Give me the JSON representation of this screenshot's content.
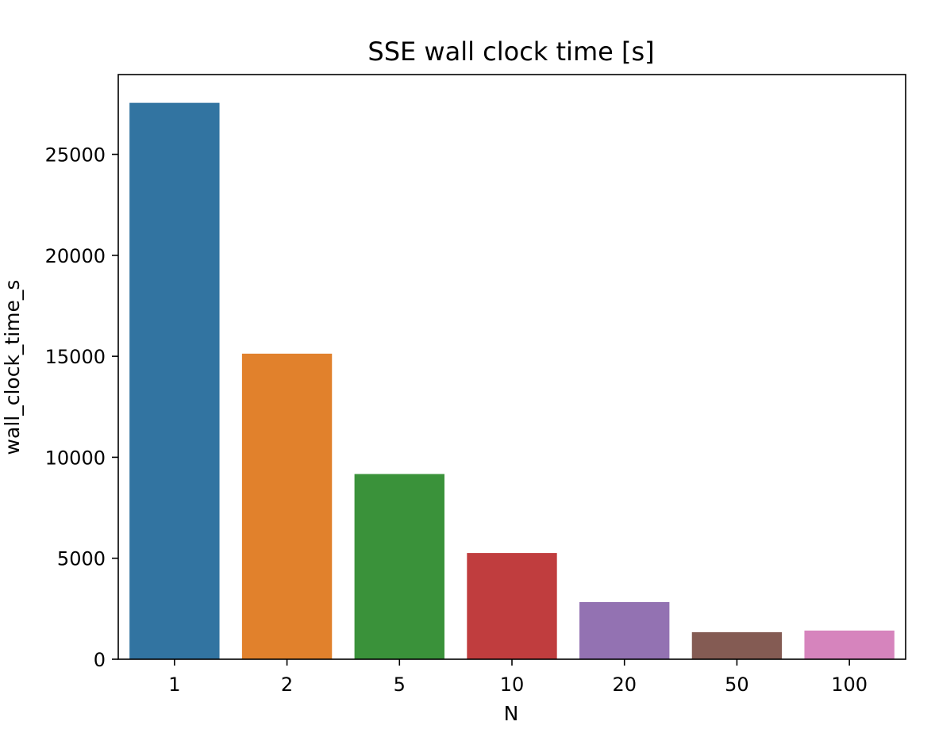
{
  "chart_data": {
    "type": "bar",
    "title": "SSE wall clock time [s]",
    "xlabel": "N",
    "ylabel": "wall_clock_time_s",
    "categories": [
      "1",
      "2",
      "5",
      "10",
      "20",
      "50",
      "100"
    ],
    "values": [
      27550,
      15130,
      9170,
      5260,
      2830,
      1340,
      1420
    ],
    "colors": [
      "#3274a1",
      "#e1812c",
      "#3a923a",
      "#c03d3e",
      "#9372b2",
      "#845b53",
      "#d684bd"
    ],
    "ylim": [
      0,
      28950
    ],
    "yticks": [
      0,
      5000,
      10000,
      15000,
      20000,
      25000
    ],
    "grid": false,
    "legend": "none"
  }
}
